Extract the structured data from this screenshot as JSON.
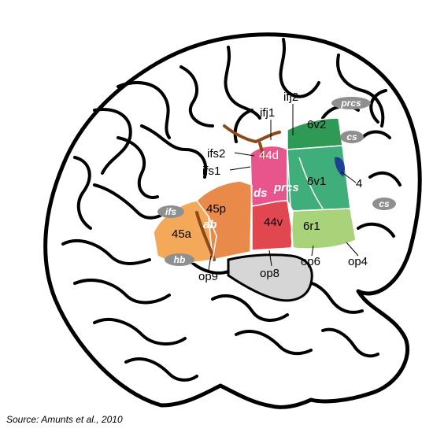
{
  "source": "Source: Amunts et al., 2010",
  "region_labels": {
    "r44d": "44d",
    "r44v": "44v",
    "r45p": "45p",
    "r45a": "45a",
    "r6v2": "6v2",
    "r6v1": "6v1",
    "r6r1": "6r1",
    "r4": "4"
  },
  "sulcus_labels": {
    "ifj1": "ifj1",
    "ifj2": "ifj2",
    "ifs2": "ifs2",
    "ifs1": "ifs1",
    "ds": "ds",
    "prcs_inner": "prcs",
    "ab": "ab",
    "op9": "op9",
    "op8": "op8",
    "op6": "op6",
    "op4": "op4"
  },
  "pill_labels": {
    "prcs": "prcs",
    "cs_top": "cs",
    "cs_right": "cs",
    "ifs": "ifs",
    "hb": "hb"
  },
  "colors": {
    "area45a": "#f4a85a",
    "area45p": "#e98a4a",
    "area44d": "#e8558c",
    "area44v": "#e0474f",
    "area6v2": "#2e9a55",
    "area6v1": "#3fae7a",
    "area6r1": "#a9d37a",
    "area4": "#1f3f95",
    "sulcus_brown": "#8b4a1c",
    "pill_gray": "#8f8f8f"
  }
}
